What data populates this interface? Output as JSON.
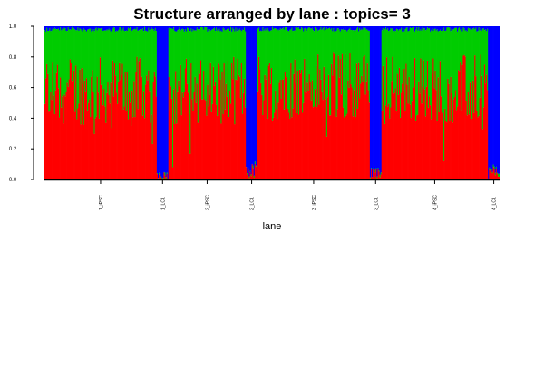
{
  "chart_data": {
    "type": "bar",
    "stacked": true,
    "title": "Structure arranged by lane : topics= 3",
    "xlabel": "lane",
    "ylabel": "",
    "ylim": [
      0,
      1
    ],
    "yticks": [
      "0.0",
      "0.2",
      "0.4",
      "0.6",
      "0.8",
      "1.0"
    ],
    "grid": false,
    "legend": "none",
    "categories": [
      "1_iPSC",
      "1_LCL",
      "2_iPSC",
      "2_LCL",
      "3_iPSC",
      "3_LCL",
      "4_iPSC",
      "4_LCL"
    ],
    "group_sizes": [
      116,
      12,
      80,
      12,
      116,
      12,
      110,
      12
    ],
    "colors": {
      "topic1": "#ff0000",
      "topic2": "#00cc00",
      "topic3": "#0000ff"
    },
    "groups": [
      {
        "name": "1_iPSC",
        "topic1": 0.58,
        "topic2": 0.4,
        "topic3": 0.02
      },
      {
        "name": "1_LCL",
        "topic1": 0.03,
        "topic2": 0.0,
        "topic3": 0.97
      },
      {
        "name": "2_iPSC",
        "topic1": 0.58,
        "topic2": 0.4,
        "topic3": 0.02
      },
      {
        "name": "2_LCL",
        "topic1": 0.06,
        "topic2": 0.0,
        "topic3": 0.94
      },
      {
        "name": "3_iPSC",
        "topic1": 0.61,
        "topic2": 0.37,
        "topic3": 0.02
      },
      {
        "name": "3_LCL",
        "topic1": 0.04,
        "topic2": 0.0,
        "topic3": 0.96
      },
      {
        "name": "4_iPSC",
        "topic1": 0.59,
        "topic2": 0.39,
        "topic3": 0.02
      },
      {
        "name": "4_LCL",
        "topic1": 0.05,
        "topic2": 0.0,
        "topic3": 0.95
      }
    ]
  }
}
